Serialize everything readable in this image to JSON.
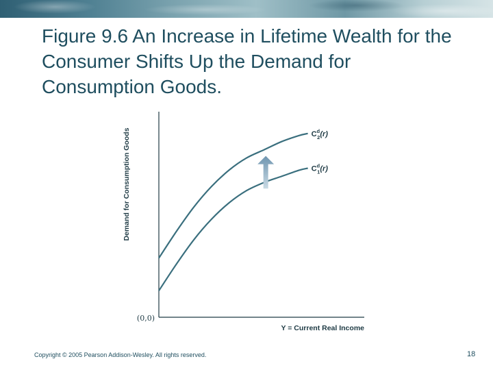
{
  "slide": {
    "title": "Figure 9.6 An Increase in Lifetime Wealth for the Consumer Shifts Up the Demand for Consumption Goods.",
    "footer": "Copyright © 2005 Pearson Addison-Wesley. All rights reserved.",
    "page_number": "18"
  },
  "colors": {
    "title": "#1f4e5f",
    "curve": "#3a6f7e",
    "axis": "#1e3a44",
    "arrow": "#8fb0c6"
  },
  "chart_data": {
    "type": "line",
    "title": "",
    "xlabel": "Y = Current Real Income",
    "ylabel": "Demand for Consumption Goods",
    "origin_label": "(0,0)",
    "xlim": [
      0,
      10
    ],
    "ylim": [
      0,
      10
    ],
    "grid": false,
    "legend": "labels at curve ends",
    "series": [
      {
        "name": "C2d(r)",
        "label": {
          "base": "C",
          "sup": "d",
          "sub": "2",
          "arg": "(r)"
        },
        "x": [
          0,
          1,
          2,
          3,
          4,
          5,
          6,
          7,
          8,
          8.5
        ],
        "values": [
          2.9,
          4.2,
          5.4,
          6.4,
          7.2,
          7.8,
          8.2,
          8.6,
          8.9,
          9.0
        ]
      },
      {
        "name": "C1d(r)",
        "label": {
          "base": "C",
          "sup": "d",
          "sub": "1",
          "arg": "(r)"
        },
        "x": [
          0,
          1,
          2,
          3,
          4,
          5,
          6,
          7,
          8,
          8.5
        ],
        "values": [
          1.3,
          2.6,
          3.8,
          4.8,
          5.6,
          6.2,
          6.6,
          6.9,
          7.2,
          7.3
        ]
      }
    ],
    "annotations": [
      {
        "type": "arrow",
        "direction": "up",
        "meaning": "shift up",
        "x": 6.1,
        "from": 6.3,
        "to": 7.9
      }
    ]
  }
}
